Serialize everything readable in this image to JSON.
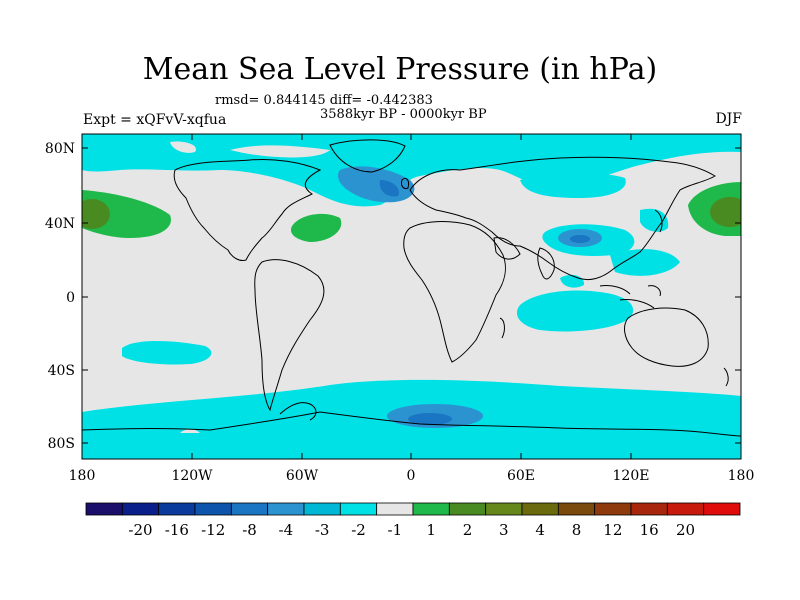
{
  "title": "Mean Sea Level Pressure (in hPa)",
  "stats": "rmsd= 0.844145 diff= -0.442383",
  "period": "3588kyr BP - 0000kyr BP",
  "experiment": "Expt = xQFvV-xqfua",
  "season": "DJF",
  "lat_labels": [
    "80N",
    "40N",
    "0",
    "40S",
    "80S"
  ],
  "lon_labels": [
    "180",
    "120W",
    "60W",
    "0",
    "60E",
    "120E",
    "180"
  ],
  "colorbar": {
    "colors": [
      "#1b0f6b",
      "#0b1f8a",
      "#0a3a9c",
      "#0d54ad",
      "#1a75c2",
      "#2c93d1",
      "#00b7d6",
      "#00e1e6",
      "#e6e6e6",
      "#1eb94a",
      "#4a8b21",
      "#66871a",
      "#6b6a0c",
      "#7a4a0c",
      "#8e3a0c",
      "#a8260c",
      "#c81a0c",
      "#e00c0c"
    ],
    "labels": [
      "-20",
      "-16",
      "-12",
      "-8",
      "-4",
      "-3",
      "-2",
      "-1",
      "1",
      "2",
      "3",
      "4",
      "8",
      "12",
      "16",
      "20"
    ]
  }
}
